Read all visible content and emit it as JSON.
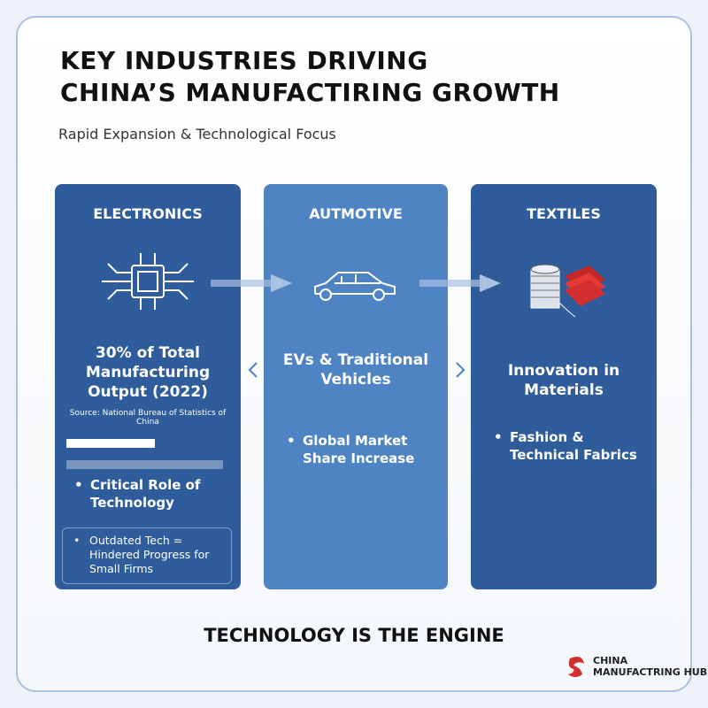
{
  "header": {
    "title_lines": [
      "KEY INDUSTRIES DRIVING",
      "CHINA’S MANUFACTIRING GROWTH"
    ],
    "subtitle": "Rapid Expansion & Technological Focus"
  },
  "cards": [
    {
      "title": "ELECTRONICS",
      "headline": "30% of Total Manufacturing Output (2022)",
      "source": "Source: National Bureau of Statistics of China",
      "bullet": "Critical Role of Technology",
      "note": "Outdated Tech = Hindered Progress for Small Firms"
    },
    {
      "title": "AUTMOTIVE",
      "headline": "EVs & Traditional Vehicles",
      "bullet": "Global Market Share Increase"
    },
    {
      "title": "TEXTILES",
      "headline": "Innovation in Materials",
      "bullet": "Fashion & Technical Fabrics"
    }
  ],
  "footer": "TECHNOLOGY IS THE ENGINE",
  "logo": {
    "lines": [
      "CHINA",
      "MANUFACTRING HUB"
    ]
  }
}
